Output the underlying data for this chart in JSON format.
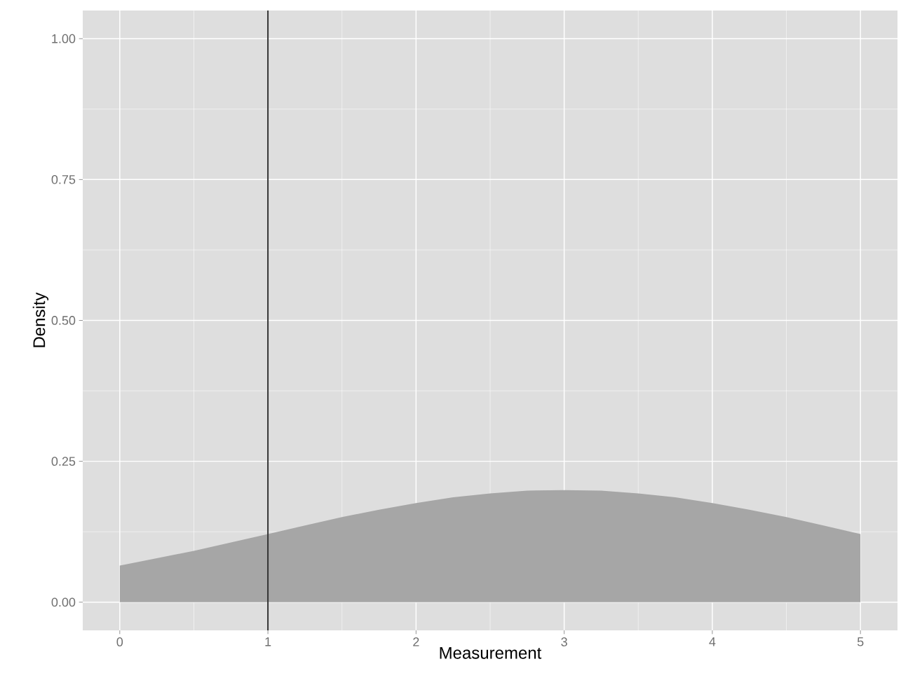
{
  "chart_data": {
    "type": "area",
    "xlabel": "Measurement",
    "ylabel": "Density",
    "x": [
      0,
      0.25,
      0.5,
      0.75,
      1,
      1.25,
      1.5,
      1.75,
      2,
      2.25,
      2.5,
      2.75,
      3,
      3.25,
      3.5,
      3.75,
      4,
      4.25,
      4.5,
      4.75,
      5
    ],
    "values": [
      0.065,
      0.078,
      0.091,
      0.106,
      0.121,
      0.136,
      0.151,
      0.164,
      0.176,
      0.186,
      0.193,
      0.198,
      0.199,
      0.198,
      0.193,
      0.186,
      0.176,
      0.164,
      0.151,
      0.136,
      0.121
    ],
    "color": "#a6a6a6",
    "xlim": [
      -0.25,
      5.25
    ],
    "ylim": [
      -0.05,
      1.05
    ],
    "xticks": [
      0,
      1,
      2,
      3,
      4,
      5
    ],
    "yticks": [
      {
        "value": 0,
        "label": "0.00"
      },
      {
        "value": 0.25,
        "label": "0.25"
      },
      {
        "value": 0.5,
        "label": "0.50"
      },
      {
        "value": 0.75,
        "label": "0.75"
      },
      {
        "value": 1,
        "label": "1.00"
      }
    ],
    "ref_lines": [
      {
        "axis": "x",
        "value": 1,
        "color": "#333333"
      }
    ],
    "grid": true
  }
}
